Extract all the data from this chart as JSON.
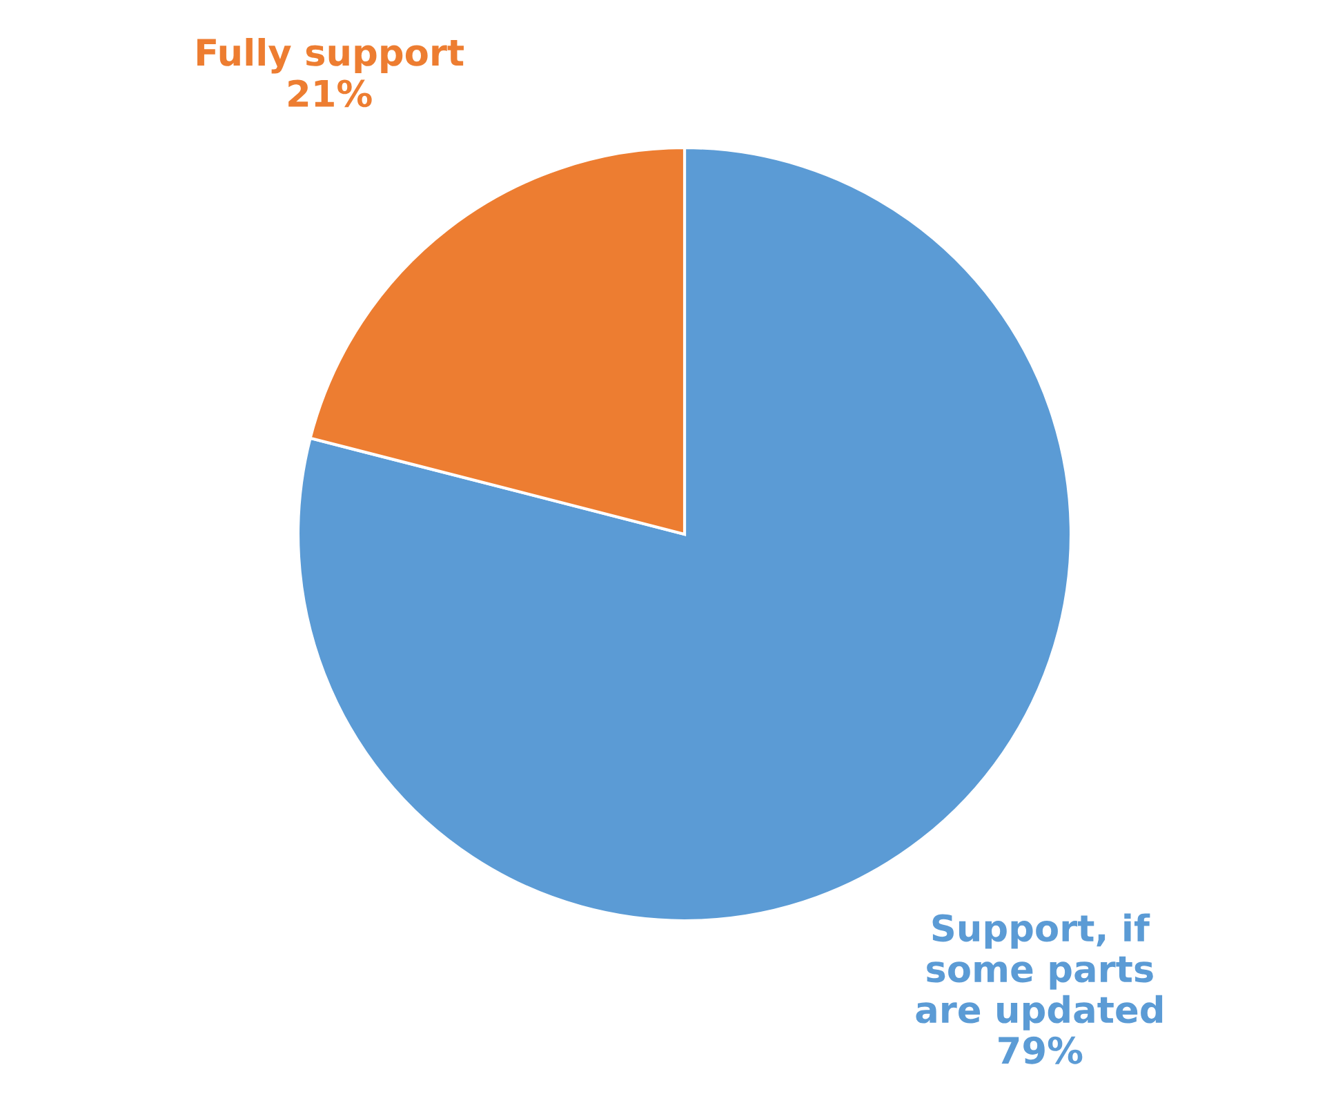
{
  "chart_data": {
    "type": "pie",
    "categories": [
      "Support, if\nsome parts\nare updated",
      "Fully support"
    ],
    "values": [
      79,
      21
    ],
    "colors": [
      "#5b9bd5",
      "#ed7d31"
    ],
    "value_labels": [
      "79%",
      "21%"
    ]
  }
}
